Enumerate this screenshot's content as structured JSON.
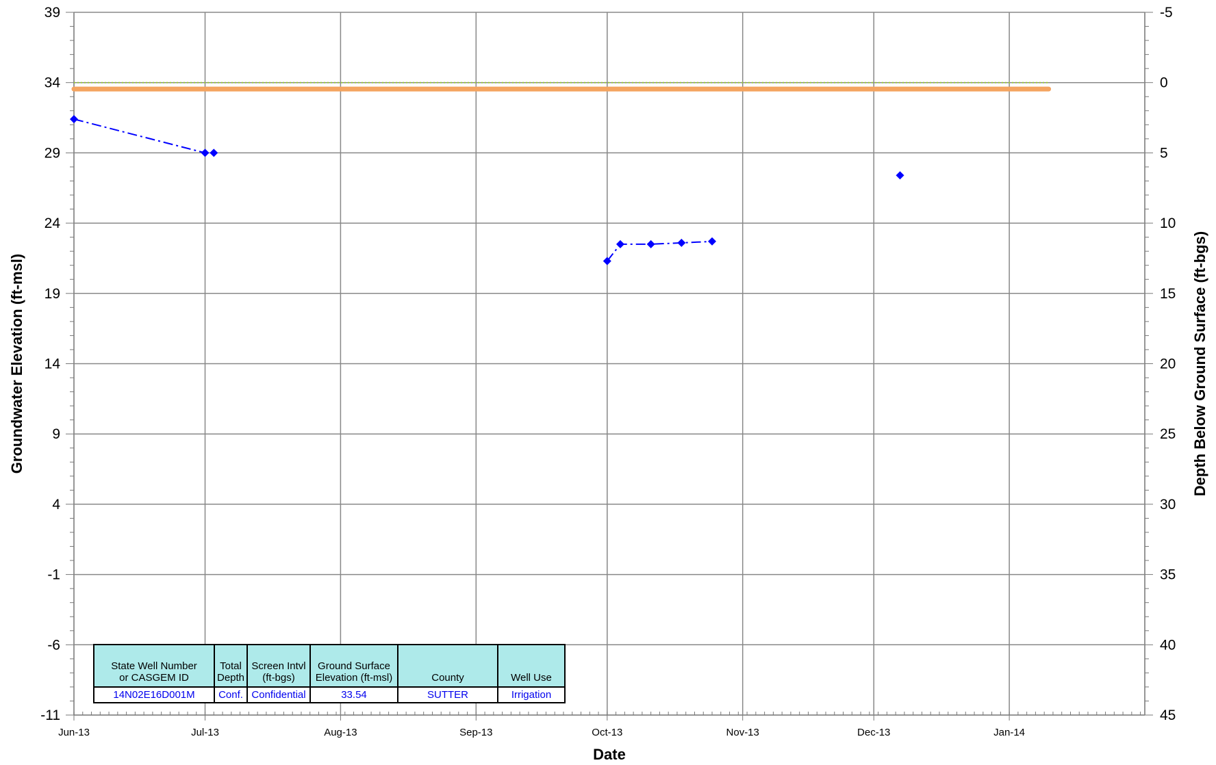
{
  "chart_data": {
    "type": "line",
    "xlabel": "Date",
    "ylabel_left": "Groundwater Elevation (ft-msl)",
    "ylabel_right": "Depth Below Ground Surface (ft-bgs)",
    "ylim_left": [
      -11,
      39
    ],
    "ylim_right": [
      45,
      -5
    ],
    "yticks_left": [
      "39",
      "34",
      "29",
      "24",
      "19",
      "14",
      "9",
      "4",
      "-1",
      "-6",
      "-11"
    ],
    "yticks_right": [
      "-5",
      "0",
      "5",
      "10",
      "15",
      "20",
      "25",
      "30",
      "35",
      "40",
      "45"
    ],
    "x_tick_labels": [
      "Jun-13",
      "Jul-13",
      "Aug-13",
      "Sep-13",
      "Oct-13",
      "Nov-13",
      "Dec-13",
      "Jan-14"
    ],
    "x_tick_dates": [
      "2013-06-01",
      "2013-07-01",
      "2013-08-01",
      "2013-09-01",
      "2013-10-01",
      "2013-11-01",
      "2013-12-01",
      "2014-01-01"
    ],
    "xlim": [
      "2013-06-01",
      "2014-02-01"
    ],
    "grid": true,
    "ground_surface_elevation": 33.54,
    "series": [
      {
        "color": "#0000ff",
        "style": "dash-dot with diamond markers",
        "segments": [
          [
            {
              "x": "2013-06-01",
              "y": 31.4
            },
            {
              "x": "2013-07-01",
              "y": 29.0
            },
            {
              "x": "2013-07-03",
              "y": 29.0
            }
          ],
          [
            {
              "x": "2013-10-01",
              "y": 21.3
            },
            {
              "x": "2013-10-04",
              "y": 22.5
            },
            {
              "x": "2013-10-11",
              "y": 22.5
            },
            {
              "x": "2013-10-18",
              "y": 22.6
            },
            {
              "x": "2013-10-25",
              "y": 22.7
            }
          ],
          [
            {
              "x": "2013-12-07",
              "y": 27.4
            }
          ]
        ]
      },
      {
        "color": "#f4a460",
        "style": "thick solid line",
        "points": [
          {
            "x": "2013-06-01",
            "y": 33.54
          },
          {
            "x": "2014-01-10",
            "y": 33.54
          }
        ]
      },
      {
        "color": "#9acd32",
        "style": "dotted line",
        "points": [
          {
            "x": "2013-06-01",
            "y": 34.0
          },
          {
            "x": "2014-01-10",
            "y": 34.0
          }
        ]
      }
    ]
  },
  "info_table": {
    "headers": [
      "State Well Number\nor CASGEM ID",
      "Total\nDepth",
      "Screen Intvl\n(ft-bgs)",
      "Ground Surface\nElevation (ft-msl)",
      "County",
      "Well Use"
    ],
    "values": [
      "14N02E16D001M",
      "Conf.",
      "Confidential",
      "33.54",
      "SUTTER",
      "Irrigation"
    ]
  }
}
